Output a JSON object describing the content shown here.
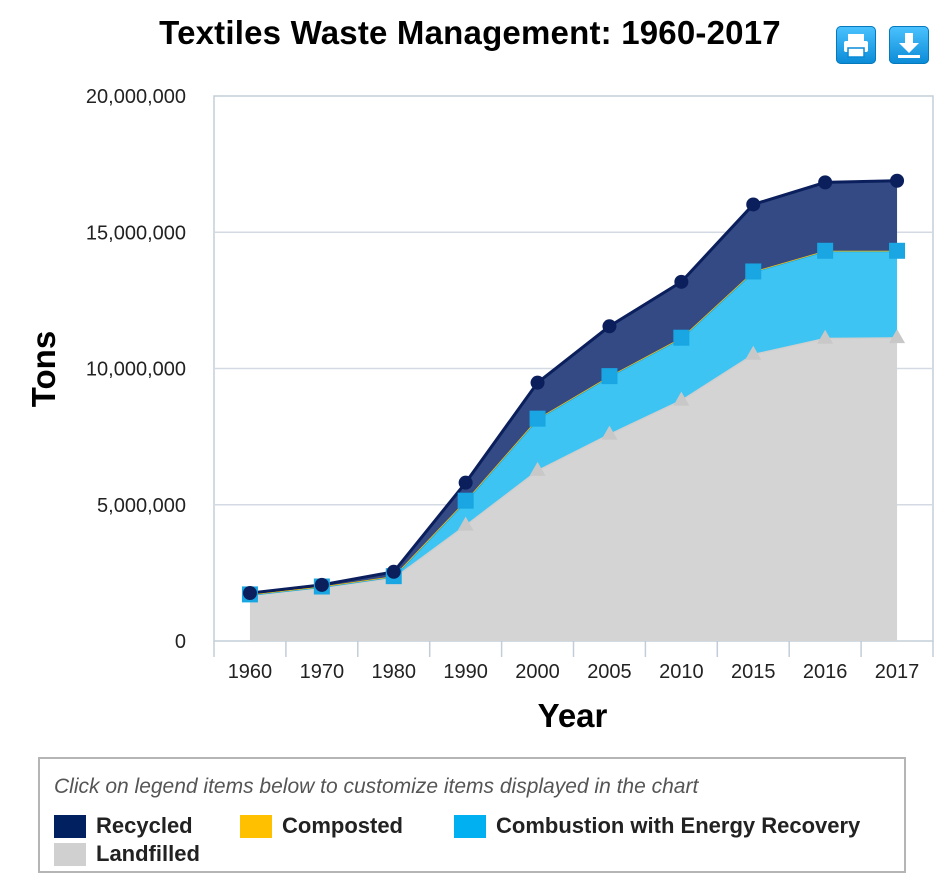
{
  "page": {
    "title": "Textiles Waste Management: 1960-2017",
    "print_icon": "printer-icon",
    "download_icon": "download-icon",
    "legend_hint": "Click on legend items below to customize items displayed in the chart"
  },
  "chart_data": {
    "type": "area",
    "stacked": true,
    "title": "Textiles Waste Management: 1960-2017",
    "xlabel": "Year",
    "ylabel": "Tons",
    "categories": [
      "1960",
      "1970",
      "1980",
      "1990",
      "2000",
      "2005",
      "2010",
      "2015",
      "2016",
      "2017"
    ],
    "ylim": [
      0,
      20000000
    ],
    "yticks": [
      0,
      5000000,
      10000000,
      15000000,
      20000000
    ],
    "ytick_labels": [
      "0",
      "5,000,000",
      "10,000,000",
      "15,000,000",
      "20,000,000"
    ],
    "grid": true,
    "legend_position": "bottom",
    "series": [
      {
        "name": "Recycled",
        "color": "#002060",
        "marker": "circle",
        "values": [
          50000,
          60000,
          160000,
          660000,
          1320000,
          1830000,
          2050000,
          2460000,
          2510000,
          2570000
        ]
      },
      {
        "name": "Composted",
        "color": "#FFC000",
        "marker": "none",
        "values": [
          0,
          0,
          0,
          0,
          0,
          0,
          0,
          0,
          0,
          0
        ]
      },
      {
        "name": "Combustion with Energy Recovery",
        "color": "#00B0F0",
        "marker": "square",
        "values": [
          0,
          10000,
          50000,
          880000,
          1880000,
          2110000,
          2270000,
          3020000,
          3190000,
          3170000
        ]
      },
      {
        "name": "Landfilled",
        "color": "#D0D0D0",
        "marker": "triangle",
        "values": [
          1710000,
          1990000,
          2330000,
          4270000,
          6280000,
          7610000,
          8860000,
          10540000,
          11130000,
          11150000
        ]
      }
    ]
  }
}
